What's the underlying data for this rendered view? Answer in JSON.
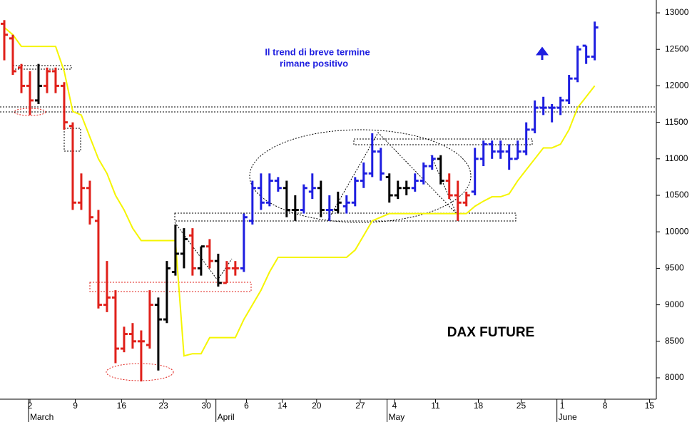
{
  "chart_data": {
    "type": "ohlc",
    "annotations": [
      "Il trend di breve termine",
      "rimane positivo",
      "DAX FUTURE"
    ],
    "x": [
      0,
      1,
      2,
      3,
      4,
      5,
      6,
      7,
      8,
      9,
      10,
      11,
      12,
      13,
      14,
      15,
      16,
      17,
      18,
      19,
      20,
      21,
      22,
      23,
      24,
      25,
      26,
      27,
      28,
      29,
      30,
      31,
      32,
      33,
      34,
      35,
      36,
      37,
      38,
      39,
      40,
      41,
      42,
      43,
      44,
      45,
      46,
      47,
      48,
      49,
      50,
      51,
      52,
      53,
      54,
      55,
      56,
      57,
      58,
      59,
      60,
      61,
      62,
      63,
      64,
      65,
      66,
      67,
      68,
      69
    ],
    "open": [
      12850,
      12650,
      12250,
      12000,
      11800,
      12000,
      12200,
      12000,
      11450,
      10400,
      10600,
      10150,
      9000,
      9100,
      8400,
      8600,
      8500,
      8450,
      9000,
      8800,
      9450,
      9700,
      9950,
      9500,
      9800,
      9600,
      9300,
      9500,
      9500,
      10150,
      10600,
      10400,
      10700,
      10600,
      10300,
      10300,
      10550,
      10600,
      10300,
      10300,
      10350,
      10400,
      10700,
      10800,
      11100,
      10750,
      10500,
      10600,
      10600,
      10700,
      10900,
      11000,
      10700,
      10500,
      10400,
      10550,
      11000,
      11200,
      11100,
      11100,
      11000,
      11100,
      11400,
      11700,
      11700,
      11700,
      11800,
      12100,
      12550,
      12400
    ],
    "high": [
      12900,
      12700,
      12300,
      12200,
      12300,
      12250,
      12250,
      12050,
      11500,
      10800,
      10700,
      10300,
      9600,
      9200,
      8700,
      8750,
      8650,
      9200,
      9100,
      9600,
      10100,
      10050,
      10050,
      9800,
      9900,
      9700,
      9600,
      9600,
      10250,
      10700,
      10800,
      10800,
      10750,
      10700,
      10500,
      10650,
      10800,
      10700,
      10500,
      10550,
      10500,
      10750,
      10950,
      11350,
      11150,
      10800,
      10700,
      10700,
      10800,
      10950,
      11050,
      11050,
      10800,
      10700,
      10550,
      11150,
      11250,
      11250,
      11250,
      11200,
      11250,
      11500,
      11800,
      11850,
      11750,
      11850,
      12150,
      12550,
      12550,
      12880
    ],
    "low": [
      12350,
      12150,
      11900,
      11600,
      11750,
      11900,
      11900,
      11400,
      10300,
      10300,
      10100,
      8950,
      8900,
      8200,
      8350,
      8400,
      7950,
      8400,
      8100,
      8750,
      9400,
      9500,
      9400,
      9400,
      9500,
      9250,
      9300,
      9400,
      9450,
      10100,
      10300,
      10350,
      10550,
      10200,
      10150,
      10250,
      10450,
      10200,
      10150,
      10250,
      10250,
      10350,
      10600,
      10750,
      10700,
      10400,
      10450,
      10500,
      10550,
      10650,
      10850,
      10650,
      10450,
      10150,
      10350,
      10500,
      10900,
      11000,
      11000,
      10850,
      11000,
      11050,
      11350,
      11600,
      11500,
      11600,
      11750,
      12050,
      12300,
      12350
    ],
    "close": [
      12700,
      12200,
      12000,
      11800,
      12000,
      12200,
      12000,
      11500,
      10400,
      10600,
      10200,
      9000,
      9100,
      8400,
      8600,
      8500,
      8500,
      9000,
      8800,
      9500,
      9700,
      9900,
      9500,
      9800,
      9600,
      9300,
      9500,
      9500,
      10200,
      10600,
      10400,
      10700,
      10600,
      10300,
      10300,
      10600,
      10600,
      10300,
      10300,
      10400,
      10400,
      10700,
      10800,
      11100,
      10800,
      10500,
      10600,
      10600,
      10700,
      10900,
      11000,
      10700,
      10500,
      10400,
      10500,
      11000,
      11200,
      11100,
      11100,
      11000,
      11100,
      11400,
      11700,
      11700,
      11700,
      11800,
      12100,
      12500,
      12400,
      12800
    ],
    "colors": [
      "#e0201a",
      "#e0201a",
      "#e0201a",
      "#e0201a",
      "#000000",
      "#e0201a",
      "#e0201a",
      "#e0201a",
      "#e0201a",
      "#e0201a",
      "#e0201a",
      "#e0201a",
      "#e0201a",
      "#e0201a",
      "#e0201a",
      "#e0201a",
      "#e0201a",
      "#e0201a",
      "#000000",
      "#000000",
      "#000000",
      "#000000",
      "#e0201a",
      "#000000",
      "#e0201a",
      "#000000",
      "#e0201a",
      "#e0201a",
      "#1e1ee0",
      "#1e1ee0",
      "#1e1ee0",
      "#1e1ee0",
      "#1e1ee0",
      "#000000",
      "#000000",
      "#1e1ee0",
      "#1e1ee0",
      "#000000",
      "#1e1ee0",
      "#000000",
      "#1e1ee0",
      "#1e1ee0",
      "#1e1ee0",
      "#1e1ee0",
      "#1e1ee0",
      "#000000",
      "#000000",
      "#000000",
      "#1e1ee0",
      "#1e1ee0",
      "#1e1ee0",
      "#000000",
      "#e0201a",
      "#e0201a",
      "#e0201a",
      "#1e1ee0",
      "#1e1ee0",
      "#1e1ee0",
      "#1e1ee0",
      "#1e1ee0",
      "#1e1ee0",
      "#1e1ee0",
      "#1e1ee0",
      "#1e1ee0",
      "#1e1ee0",
      "#1e1ee0",
      "#1e1ee0",
      "#1e1ee0",
      "#1e1ee0",
      "#1e1ee0"
    ],
    "stop_line": {
      "color": "#f5f500",
      "values": [
        12800,
        12700,
        12540,
        12540,
        12540,
        12540,
        12540,
        12200,
        11650,
        11600,
        11300,
        11000,
        10800,
        10500,
        10300,
        10050,
        9880,
        9880,
        9880,
        9880,
        9880,
        8300,
        8330,
        8330,
        8550,
        8550,
        8550,
        8550,
        8800,
        9000,
        9200,
        9450,
        9650,
        9650,
        9650,
        9650,
        9650,
        9650,
        9650,
        9650,
        9650,
        9750,
        9950,
        10150,
        10200,
        10250,
        10250,
        10250,
        10250,
        10250,
        10250,
        10250,
        10250,
        10250,
        10250,
        10350,
        10420,
        10480,
        10480,
        10520,
        10700,
        10850,
        11000,
        11150,
        11150,
        11200,
        11400,
        11700,
        11850,
        12000
      ]
    },
    "xlim": [
      -0.5,
      76.2
    ],
    "ylim": [
      7707,
      13176
    ],
    "yticks": [
      8000,
      8500,
      9000,
      9500,
      10000,
      10500,
      11000,
      11500,
      12000,
      12500,
      13000
    ],
    "xticks": [
      {
        "value": 3,
        "label": "2"
      },
      {
        "value": 8.3,
        "label": "9"
      },
      {
        "value": 13.7,
        "label": "16"
      },
      {
        "value": 18.6,
        "label": "23"
      },
      {
        "value": 23.6,
        "label": "30"
      },
      {
        "value": 28.3,
        "label": "6"
      },
      {
        "value": 32.5,
        "label": "14"
      },
      {
        "value": 36.5,
        "label": "20"
      },
      {
        "value": 41.6,
        "label": "27"
      },
      {
        "value": 45.6,
        "label": "4"
      },
      {
        "value": 50.4,
        "label": "11"
      },
      {
        "value": 55.4,
        "label": "18"
      },
      {
        "value": 60.4,
        "label": "25"
      },
      {
        "value": 65.2,
        "label": "1"
      },
      {
        "value": 70.2,
        "label": "8"
      },
      {
        "value": 75.4,
        "label": "15"
      }
    ],
    "month_ticks": [
      {
        "value": 3,
        "label": "March"
      },
      {
        "value": 24.9,
        "label": "April"
      },
      {
        "value": 44.9,
        "label": "May"
      },
      {
        "value": 64.75,
        "label": "June"
      }
    ]
  }
}
